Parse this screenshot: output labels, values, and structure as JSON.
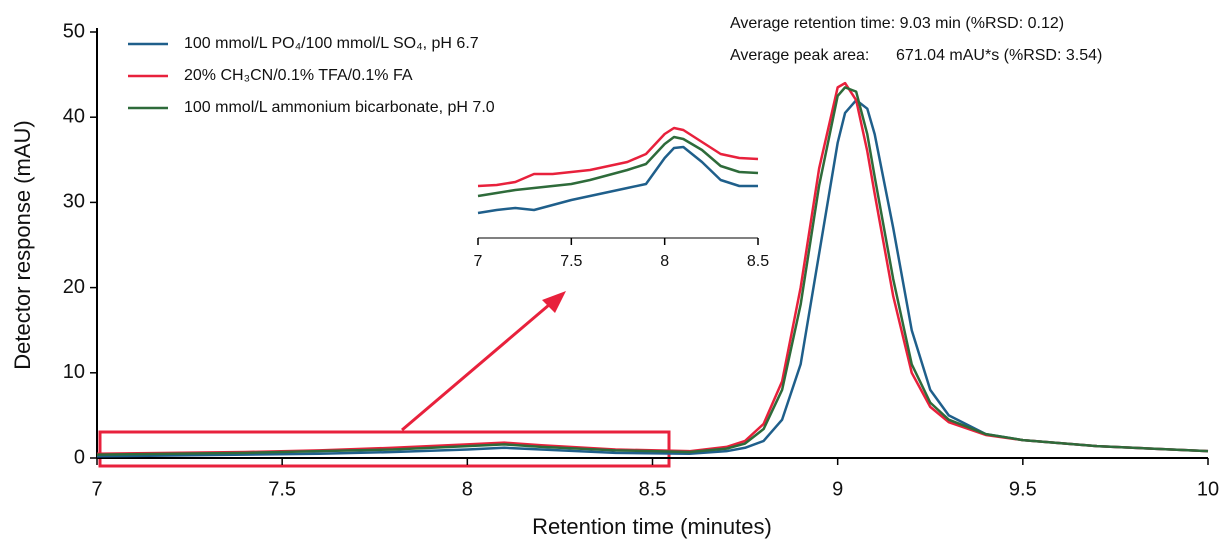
{
  "chart_data": [
    {
      "type": "line",
      "x_label": "Retention time (minutes)",
      "y_label": "Detector response (mAU)",
      "annotations": [
        "Average retention time: 9.03 min (%RSD: 0.12)",
        "Average peak area:      671.04 mAU*s (%RSD: 3.54)"
      ],
      "x": [
        7,
        7.2,
        7.4,
        7.6,
        7.8,
        8,
        8.1,
        8.2,
        8.4,
        8.6,
        8.7,
        8.75,
        8.8,
        8.85,
        8.9,
        8.95,
        9,
        9.02,
        9.05,
        9.08,
        9.1,
        9.15,
        9.2,
        9.25,
        9.3,
        9.4,
        9.5,
        9.7,
        10
      ],
      "series": [
        {
          "name": "100 mmol/L PO₄/100 mmol/L SO₄, pH 6.7",
          "color": "#1f5f8b",
          "values": [
            0.2,
            0.3,
            0.4,
            0.5,
            0.7,
            1.0,
            1.2,
            1.0,
            0.6,
            0.5,
            0.8,
            1.2,
            2.0,
            4.5,
            11,
            24,
            37,
            40.5,
            42,
            41,
            38,
            27,
            15,
            8,
            5,
            2.8,
            2.1,
            1.4,
            0.8
          ]
        },
        {
          "name": "20% CH₃CN/0.1% TFA/0.1% FA",
          "color": "#e8213c",
          "values": [
            0.5,
            0.6,
            0.7,
            0.9,
            1.2,
            1.6,
            1.8,
            1.5,
            1.0,
            0.8,
            1.3,
            2.0,
            4,
            9,
            20,
            34,
            43.5,
            44,
            42,
            36,
            31,
            19,
            10,
            6,
            4.2,
            2.7,
            2.1,
            1.4,
            0.8
          ]
        },
        {
          "name": "100 mmol/L ammonium bicarbonate, pH 7.0",
          "color": "#2e6b3a",
          "values": [
            0.4,
            0.5,
            0.6,
            0.8,
            1.0,
            1.4,
            1.6,
            1.3,
            0.9,
            0.7,
            1.1,
            1.7,
            3.4,
            8,
            18,
            32,
            42.5,
            43.5,
            43,
            38,
            33,
            21,
            11,
            6.5,
            4.5,
            2.8,
            2.1,
            1.4,
            0.8
          ]
        }
      ],
      "xlim": [
        7,
        10
      ],
      "xticks": [
        7,
        7.5,
        8,
        8.5,
        9,
        9.5,
        10
      ],
      "ylim": [
        0,
        50
      ],
      "yticks": [
        0,
        10,
        20,
        30,
        40,
        50
      ]
    },
    {
      "type": "line",
      "x": [
        7,
        7.1,
        7.2,
        7.3,
        7.4,
        7.5,
        7.6,
        7.7,
        7.8,
        7.9,
        8,
        8.05,
        8.1,
        8.2,
        8.3,
        8.4,
        8.5
      ],
      "series": [
        {
          "color": "#e8213c",
          "values": [
            3.4,
            3.5,
            3.8,
            4.6,
            4.6,
            4.8,
            5.0,
            5.4,
            5.8,
            6.6,
            8.6,
            9.2,
            9.0,
            7.8,
            6.6,
            6.2,
            6.1
          ]
        },
        {
          "color": "#2e6b3a",
          "values": [
            2.4,
            2.7,
            3.0,
            3.2,
            3.4,
            3.6,
            4.0,
            4.5,
            5.0,
            5.6,
            7.6,
            8.3,
            8.1,
            7.0,
            5.4,
            4.8,
            4.7
          ]
        },
        {
          "color": "#1f5f8b",
          "values": [
            0.7,
            1.0,
            1.2,
            1.0,
            1.5,
            2.0,
            2.4,
            2.8,
            3.2,
            3.6,
            6.2,
            7.2,
            7.3,
            5.8,
            4.0,
            3.4,
            3.4
          ]
        }
      ],
      "xlim": [
        7,
        8.5
      ],
      "xticks": [
        7,
        7.5,
        8,
        8.5
      ],
      "ylim": [
        0,
        10
      ]
    }
  ]
}
